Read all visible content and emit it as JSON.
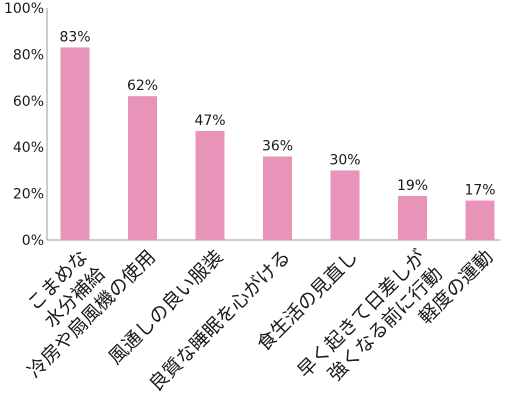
{
  "chart_data": {
    "type": "bar",
    "categories": [
      "こまめな水分補給",
      "冷房や扇風機の使用",
      "風通しの良い服装",
      "良質な睡眠を心がける",
      "食生活の見直し",
      "早く起きて日差しが強くなる前に行動",
      "軽度の運動"
    ],
    "category_label_lines": [
      [
        "こまめな",
        "水分補給"
      ],
      [
        "冷房や扇風機の使用"
      ],
      [
        "風通しの良い服装"
      ],
      [
        "良質な睡眠を心がける"
      ],
      [
        "食生活の見直し"
      ],
      [
        "早く起きて日差しが",
        "強くなる前に行動"
      ],
      [
        "軽度の運動"
      ]
    ],
    "values": [
      83,
      62,
      47,
      36,
      30,
      19,
      17
    ],
    "data_labels": [
      "83%",
      "62%",
      "47%",
      "36%",
      "30%",
      "19%",
      "17%"
    ],
    "y_ticks": [
      "0%",
      "20%",
      "40%",
      "60%",
      "80%",
      "100%"
    ],
    "ylim": [
      0,
      100
    ],
    "grid": false,
    "bar_color": "#e894b8",
    "axis_color": "#999999"
  }
}
